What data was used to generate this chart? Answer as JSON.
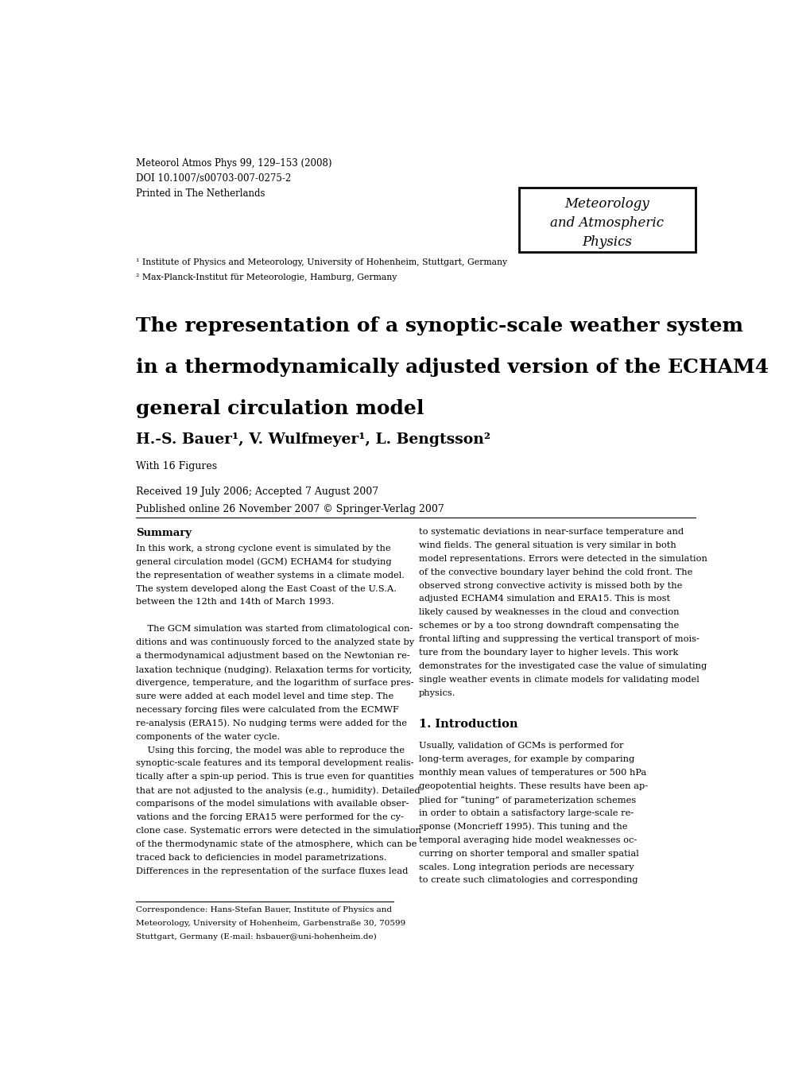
{
  "background_color": "#ffffff",
  "header_line1": "Meteorol Atmos Phys 99, 129–153 (2008)",
  "header_line2": "DOI 10.1007/s00703-007-0275-2",
  "header_line3": "Printed in The Netherlands",
  "journal_box_lines": [
    "Meteorology",
    "and Atmospheric",
    "Physics"
  ],
  "affil1": "¹ Institute of Physics and Meteorology, University of Hohenheim, Stuttgart, Germany",
  "affil2": "² Max-Planck-Institut für Meteorologie, Hamburg, Germany",
  "paper_title_line1": "The representation of a synoptic-scale weather system",
  "paper_title_line2": "in a thermodynamically adjusted version of the ECHAM4",
  "paper_title_line3": "general circulation model",
  "authors": "H.-S. Bauer¹, V. Wulfmeyer¹, L. Bengtsson²",
  "with_figures": "With 16 Figures",
  "received": "Received 19 July 2006; Accepted 7 August 2007",
  "published": "Published online 26 November 2007 © Springer-Verlag 2007",
  "summary_title": "Summary",
  "summary_text": "In this work, a strong cyclone event is simulated by the\ngeneral circulation model (GCM) ECHAM4 for studying\nthe representation of weather systems in a climate model.\nThe system developed along the East Coast of the U.S.A.\nbetween the 12th and 14th of March 1993.\n\n    The GCM simulation was started from climatological con-\nditions and was continuously forced to the analyzed state by\na thermodynamical adjustment based on the Newtonian re-\nlaxation technique (nudging). Relaxation terms for vorticity,\ndivergence, temperature, and the logarithm of surface pres-\nsure were added at each model level and time step. The\nnecessary forcing files were calculated from the ECMWF\nre-analysis (ERA15). No nudging terms were added for the\ncomponents of the water cycle.\n    Using this forcing, the model was able to reproduce the\nsynoptic-scale features and its temporal development realis-\ntically after a spin-up period. This is true even for quantities\nthat are not adjusted to the analysis (e.g., humidity). Detailed\ncomparisons of the model simulations with available obser-\nvations and the forcing ERA15 were performed for the cy-\nclone case. Systematic errors were detected in the simulation\nof the thermodynamic state of the atmosphere, which can be\ntraced back to deficiencies in model parametrizations.\nDifferences in the representation of the surface fluxes lead",
  "right_text": "to systematic deviations in near-surface temperature and\nwind fields. The general situation is very similar in both\nmodel representations. Errors were detected in the simulation\nof the convective boundary layer behind the cold front. The\nobserved strong convective activity is missed both by the\nadjusted ECHAM4 simulation and ERA15. This is most\nlikely caused by weaknesses in the cloud and convection\nschemes or by a too strong downdraft compensating the\nfrontal lifting and suppressing the vertical transport of mois-\nture from the boundary layer to higher levels. This work\ndemonstrates for the investigated case the value of simulating\nsingle weather events in climate models for validating model\nphysics.",
  "intro_title": "1. Introduction",
  "intro_text": "Usually, validation of GCMs is performed for\nlong-term averages, for example by comparing\nmonthly mean values of temperatures or 500 hPa\ngeopotential heights. These results have been ap-\nplied for “tuning” of parameterization schemes\nin order to obtain a satisfactory large-scale re-\nsponse (Moncrieff 1995). This tuning and the\ntemporal averaging hide model weaknesses oc-\ncurring on shorter temporal and smaller spatial\nscales. Long integration periods are necessary\nto create such climatologies and corresponding",
  "footnote": "Correspondence: Hans-Stefan Bauer, Institute of Physics and\nMeteorology, University of Hohenheim, Garbenstraße 30, 70599\nStuttgart, Germany (E-mail: hsbauer@uni-hohenheim.de)"
}
